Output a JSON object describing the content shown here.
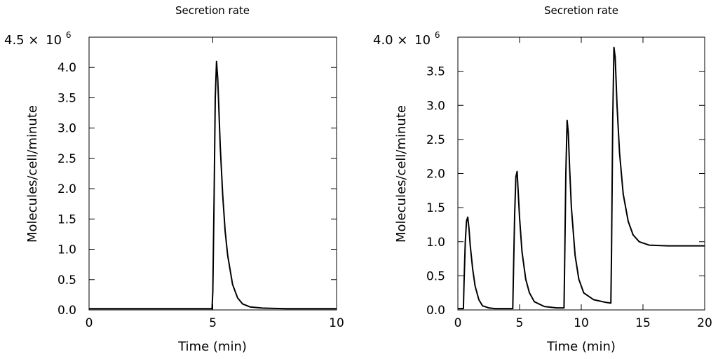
{
  "chart_data": [
    {
      "type": "line",
      "title": "Secretion rate",
      "xlabel": "Time (min)",
      "ylabel": "Molecules/cell/minute",
      "y_multiplier_prefix": "4.5 ×",
      "y_multiplier_base": "10",
      "y_multiplier_exp": "6",
      "xlim": [
        0,
        10
      ],
      "ylim": [
        0,
        4.5
      ],
      "x_ticks": [
        0,
        5,
        10
      ],
      "x_tick_labels": [
        "0",
        "5",
        "10"
      ],
      "y_ticks": [
        0,
        0.5,
        1,
        1.5,
        2,
        2.5,
        3,
        3.5,
        4
      ],
      "y_tick_labels": [
        "0.0",
        "0.5",
        "1.0",
        "1.5",
        "2.0",
        "2.5",
        "3.0",
        "3.5",
        "4.0"
      ],
      "series": [
        {
          "name": "Secretion rate",
          "x": [
            0,
            4.97,
            5.0,
            5.05,
            5.1,
            5.15,
            5.2,
            5.3,
            5.4,
            5.5,
            5.6,
            5.8,
            6.0,
            6.2,
            6.5,
            7.0,
            8.0,
            10.0
          ],
          "y": [
            0.02,
            0.02,
            0.3,
            1.8,
            3.5,
            4.1,
            3.8,
            2.7,
            1.9,
            1.3,
            0.9,
            0.42,
            0.2,
            0.1,
            0.05,
            0.03,
            0.02,
            0.02
          ]
        }
      ]
    },
    {
      "type": "line",
      "title": "Secretion rate",
      "xlabel": "Time (min)",
      "ylabel": "Molecules/cell/minute",
      "y_multiplier_prefix": "4.0 ×",
      "y_multiplier_base": "10",
      "y_multiplier_exp": "6",
      "xlim": [
        0,
        20
      ],
      "ylim": [
        0,
        4.0
      ],
      "x_ticks": [
        0,
        5,
        10,
        15,
        20
      ],
      "x_tick_labels": [
        "0",
        "5",
        "10",
        "15",
        "20"
      ],
      "y_ticks": [
        0,
        0.5,
        1,
        1.5,
        2,
        2.5,
        3,
        3.5
      ],
      "y_tick_labels": [
        "0.0",
        "0.5",
        "1.0",
        "1.5",
        "2.0",
        "2.5",
        "3.0",
        "3.5"
      ],
      "series": [
        {
          "name": "Secretion rate",
          "x": [
            0,
            0.45,
            0.5,
            0.6,
            0.7,
            0.8,
            0.9,
            1.0,
            1.2,
            1.4,
            1.7,
            2.0,
            2.5,
            3.0,
            4.45,
            4.5,
            4.6,
            4.7,
            4.8,
            4.9,
            5.0,
            5.2,
            5.5,
            5.8,
            6.2,
            7.0,
            8.0,
            8.6,
            8.65,
            8.75,
            8.85,
            8.95,
            9.05,
            9.2,
            9.5,
            9.8,
            10.2,
            11.0,
            12.0,
            12.4,
            12.45,
            12.55,
            12.65,
            12.75,
            12.9,
            13.1,
            13.4,
            13.8,
            14.2,
            14.7,
            15.5,
            17.0,
            20.0
          ],
          "y": [
            0.02,
            0.02,
            0.4,
            1.0,
            1.3,
            1.36,
            1.2,
            0.95,
            0.6,
            0.35,
            0.15,
            0.06,
            0.03,
            0.02,
            0.02,
            0.5,
            1.4,
            1.95,
            2.03,
            1.7,
            1.35,
            0.85,
            0.45,
            0.25,
            0.12,
            0.05,
            0.03,
            0.03,
            0.6,
            2.0,
            2.78,
            2.6,
            2.1,
            1.5,
            0.8,
            0.45,
            0.25,
            0.15,
            0.11,
            0.1,
            0.8,
            2.8,
            3.85,
            3.7,
            3.0,
            2.3,
            1.7,
            1.3,
            1.1,
            1.0,
            0.95,
            0.94,
            0.94
          ]
        }
      ]
    }
  ]
}
